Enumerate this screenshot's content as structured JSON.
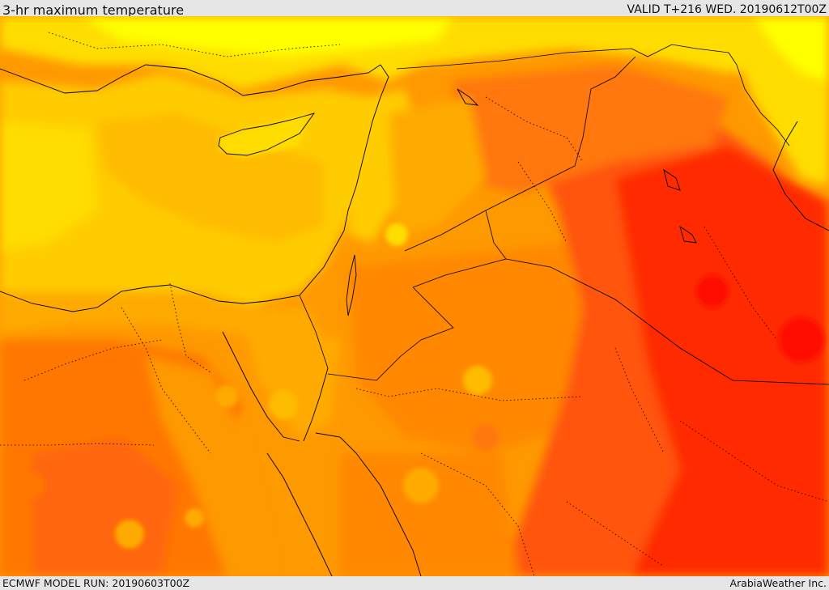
{
  "header": {
    "title": "3-hr maximum temperature",
    "valid": "VALID T+216 WED. 20190612T00Z"
  },
  "footer": {
    "model_run": "ECMWF MODEL RUN: 20190603T00Z",
    "credit": "ArabiaWeather Inc."
  },
  "palette": {
    "warm_yellow": "#ffff00",
    "yellow": "#ffdd00",
    "light_orange": "#ffbb00",
    "orange": "#ff9900",
    "dark_orange": "#ff7700",
    "red_orange": "#ff5511",
    "red": "#ff2200",
    "border_color": "#000000"
  }
}
